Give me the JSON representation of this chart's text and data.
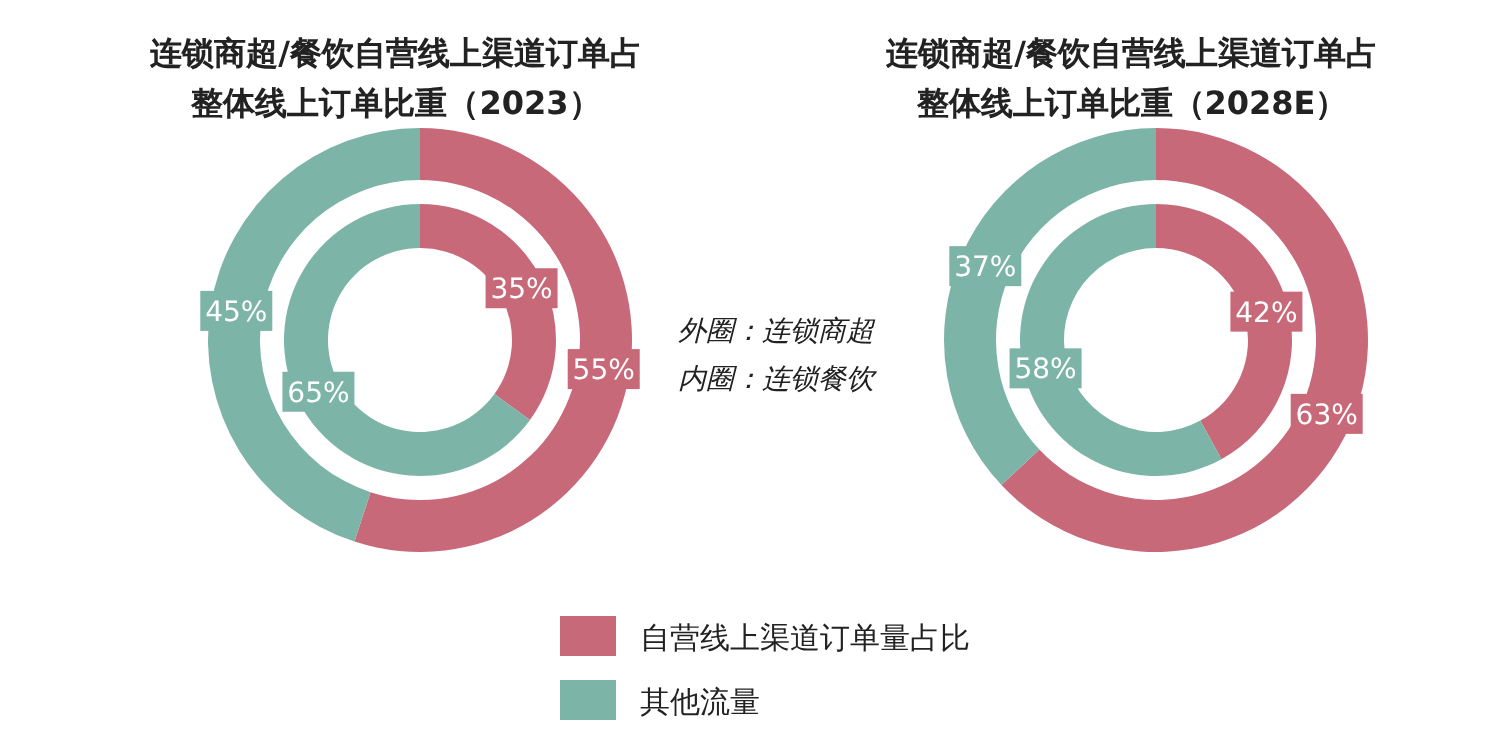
{
  "chart_data": [
    {
      "type": "donut",
      "title": "连锁商超/餐饮自营线上渠道订单占整体线上订单比重（2023）",
      "categories": [
        "自营线上渠道订单量占比",
        "其他流量"
      ],
      "legend": "bottom",
      "annotations": [
        "外圈：连锁商超",
        "内圈：连锁餐饮"
      ],
      "series": [
        {
          "values": [
            55,
            45
          ],
          "colors": [
            "#c8697a",
            "#7db4a8"
          ],
          "value_labels": [
            "55%",
            "45%"
          ]
        },
        {
          "values": [
            35,
            65
          ],
          "colors": [
            "#c8697a",
            "#7db4a8"
          ],
          "value_labels": [
            "35%",
            "65%"
          ]
        }
      ]
    },
    {
      "type": "donut",
      "title": "连锁商超/餐饮自营线上渠道订单占整体线上订单比重（2028E）",
      "series": [
        {
          "values": [
            63,
            37
          ],
          "colors": [
            "#c8697a",
            "#7db4a8"
          ],
          "value_labels": [
            "63%",
            "37%"
          ]
        },
        {
          "values": [
            42,
            58
          ],
          "colors": [
            "#c8697a",
            "#7db4a8"
          ],
          "value_labels": [
            "42%",
            "58%"
          ]
        }
      ]
    }
  ]
}
